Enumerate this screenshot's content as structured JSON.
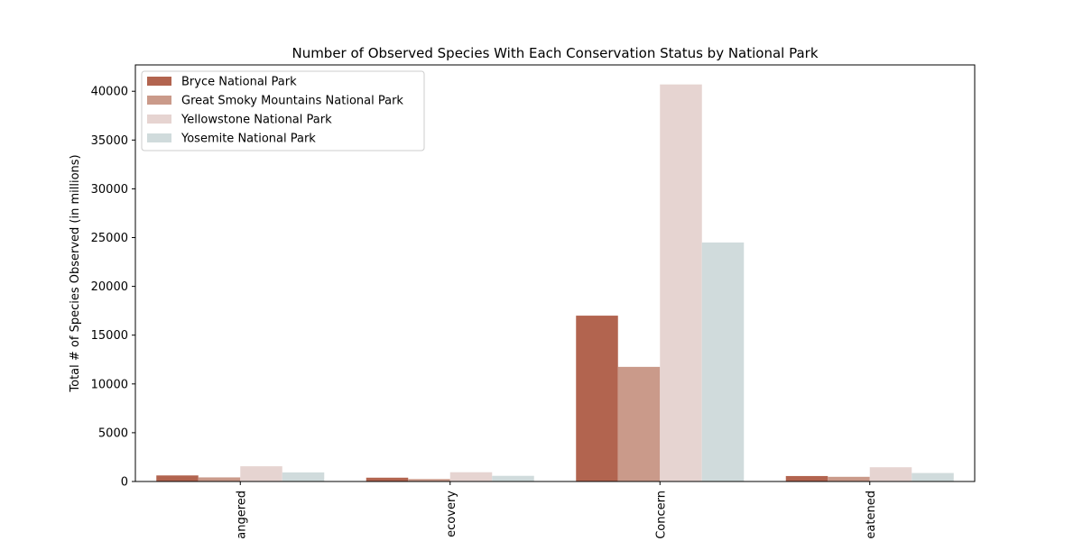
{
  "chart_data": {
    "type": "bar",
    "title": "Number of Observed Species With Each Conservation Status by National Park",
    "xlabel": "",
    "ylabel": "Total # of Species Observed (in millions)",
    "categories": [
      "Endangered",
      "In Recovery",
      "Species of Concern",
      "Threatened"
    ],
    "category_labels_visible": [
      "angered",
      "ecovery",
      "Concern",
      "eatened"
    ],
    "ylim": [
      0,
      42700
    ],
    "yticks": [
      0,
      5000,
      10000,
      15000,
      20000,
      25000,
      30000,
      35000,
      40000
    ],
    "grid": false,
    "legend_position": "top-left",
    "series": [
      {
        "name": "Bryce National Park",
        "color": "#b2644f",
        "values": [
          620,
          390,
          17000,
          560
        ]
      },
      {
        "name": "Great Smoky Mountains National Park",
        "color": "#ca9a8a",
        "values": [
          420,
          250,
          11750,
          480
        ]
      },
      {
        "name": "Yellowstone National Park",
        "color": "#e6d4d1",
        "values": [
          1560,
          950,
          40700,
          1460
        ]
      },
      {
        "name": "Yosemite National Park",
        "color": "#d0dbdc",
        "values": [
          930,
          580,
          24500,
          870
        ]
      }
    ]
  }
}
